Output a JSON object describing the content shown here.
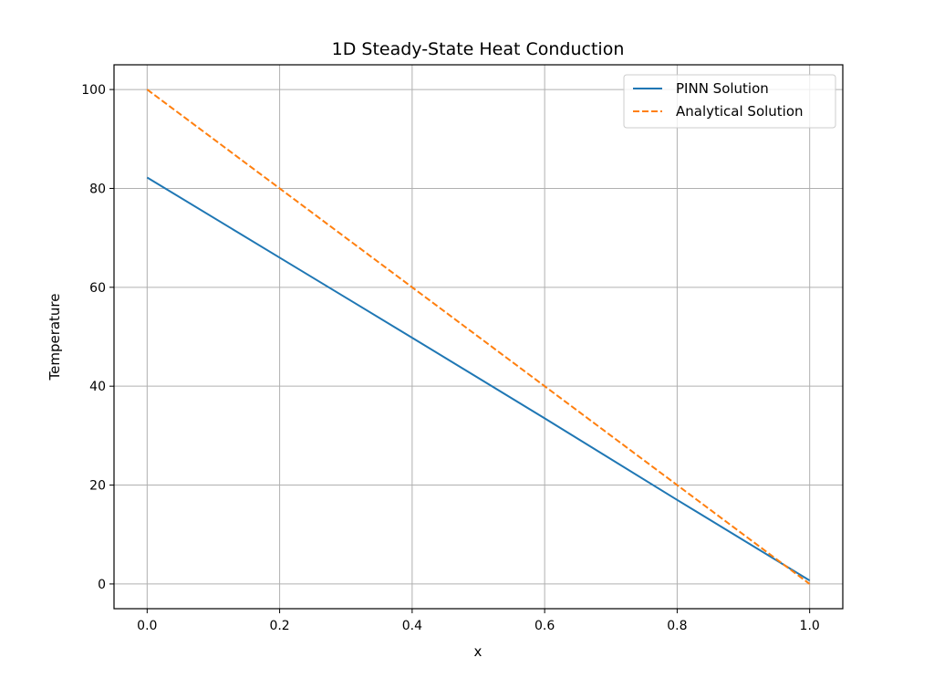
{
  "chart_data": {
    "type": "line",
    "title": "1D Steady-State Heat Conduction",
    "xlabel": "x",
    "ylabel": "Temperature",
    "xlim": [
      -0.05,
      1.05
    ],
    "ylim": [
      -5,
      105
    ],
    "xticks": [
      0.0,
      0.2,
      0.4,
      0.6,
      0.8,
      1.0
    ],
    "xtick_labels": [
      "0.0",
      "0.2",
      "0.4",
      "0.6",
      "0.8",
      "1.0"
    ],
    "yticks": [
      0,
      20,
      40,
      60,
      80,
      100
    ],
    "ytick_labels": [
      "0",
      "20",
      "40",
      "60",
      "80",
      "100"
    ],
    "grid": true,
    "legend_position": "top-right",
    "series": [
      {
        "name": "PINN Solution",
        "color": "#1f77b4",
        "style": "solid",
        "x": [
          0.0,
          0.2,
          0.4,
          0.6,
          0.8,
          1.0
        ],
        "y": [
          82.2,
          66.0,
          49.8,
          33.5,
          17.0,
          0.7
        ]
      },
      {
        "name": "Analytical Solution",
        "color": "#ff7f0e",
        "style": "dashed",
        "x": [
          0.0,
          1.0
        ],
        "y": [
          100,
          0
        ]
      }
    ]
  }
}
